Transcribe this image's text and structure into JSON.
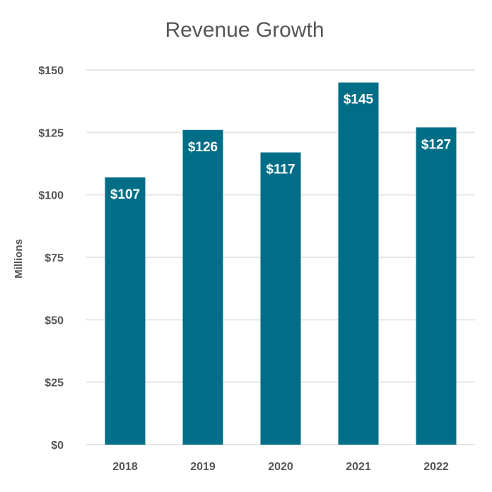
{
  "chart_data": {
    "type": "bar",
    "title": "Revenue Growth",
    "xlabel": "",
    "ylabel": "Millions",
    "categories": [
      "2018",
      "2019",
      "2020",
      "2021",
      "2022"
    ],
    "values": [
      107,
      126,
      117,
      145,
      127
    ],
    "data_labels": [
      "$107",
      "$126",
      "$117",
      "$145",
      "$127"
    ],
    "ylim": [
      0,
      150
    ],
    "yticks": [
      0,
      25,
      50,
      75,
      100,
      125,
      150
    ],
    "ytick_labels": [
      "$0",
      "$25",
      "$50",
      "$75",
      "$100",
      "$125",
      "$150"
    ],
    "grid": true,
    "legend": "none",
    "bar_color": "#006e87"
  }
}
